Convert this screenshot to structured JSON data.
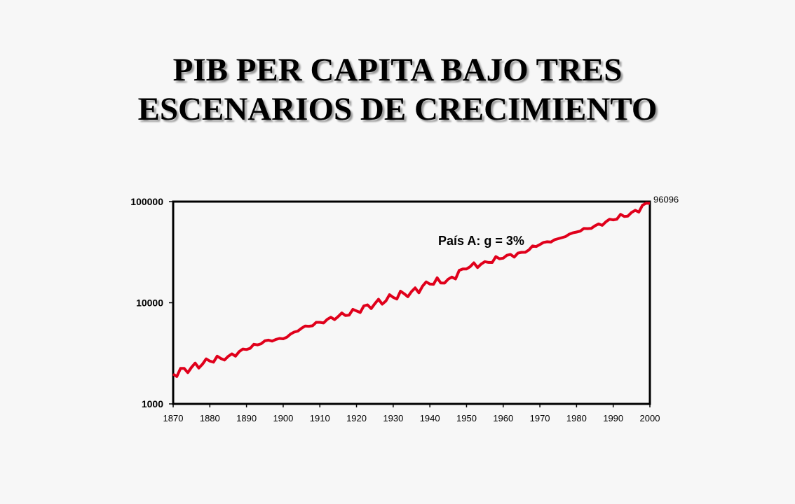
{
  "slide": {
    "title_line1": "PIB PER CAPITA BAJO TRES",
    "title_line2": "ESCENARIOS DE CRECIMIENTO"
  },
  "chart_data": {
    "type": "line",
    "title": "PIB PER CAPITA BAJO TRES ESCENARIOS DE CRECIMIENTO",
    "xlabel": "",
    "ylabel": "",
    "y_scale": "log",
    "ylim": [
      1000,
      100000
    ],
    "xlim": [
      1870,
      2000
    ],
    "x_ticks": [
      "1870",
      "1880",
      "1890",
      "1900",
      "1910",
      "1920",
      "1930",
      "1940",
      "1950",
      "1960",
      "1970",
      "1980",
      "1990",
      "2000"
    ],
    "y_ticks": [
      "1000",
      "10000",
      "100000"
    ],
    "grid": false,
    "series": [
      {
        "name": "País A:  g = 3%",
        "color": "#e0001b",
        "x": [
          1870,
          1875,
          1880,
          1885,
          1890,
          1895,
          1900,
          1905,
          1910,
          1915,
          1920,
          1925,
          1930,
          1935,
          1940,
          1945,
          1950,
          1955,
          1960,
          1965,
          1970,
          1975,
          1980,
          1985,
          1990,
          1995,
          2000
        ],
        "values": [
          1970,
          2300,
          2650,
          2950,
          3450,
          4200,
          4400,
          5600,
          6400,
          7300,
          8300,
          9800,
          11300,
          12900,
          15300,
          17100,
          21600,
          25500,
          27600,
          31500,
          37600,
          43000,
          50000,
          57500,
          66000,
          78000,
          96096
        ]
      }
    ],
    "annotations": [
      {
        "text": "País A:  g = 3%",
        "x": 1937,
        "y": 46000
      },
      {
        "text": "96096",
        "x": 2000,
        "y": 96096
      }
    ]
  }
}
